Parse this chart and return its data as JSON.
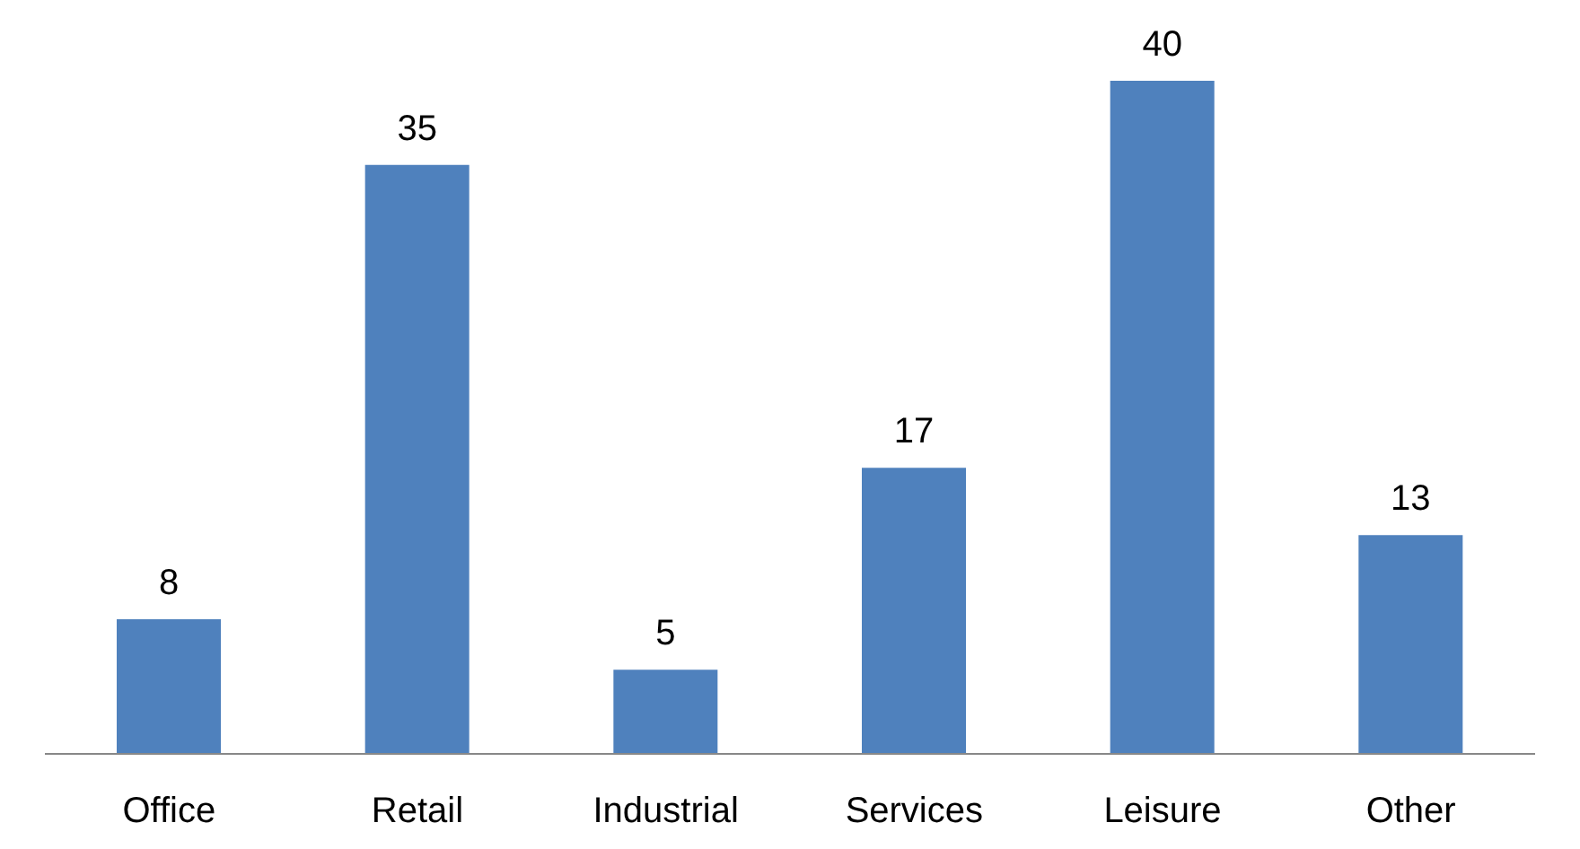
{
  "chart_data": {
    "type": "bar",
    "categories": [
      "Office",
      "Retail",
      "Industrial",
      "Services",
      "Leisure",
      "Other"
    ],
    "values": [
      8,
      35,
      5,
      17,
      40,
      13
    ],
    "color": "#4f81bd",
    "data_labels": true
  }
}
